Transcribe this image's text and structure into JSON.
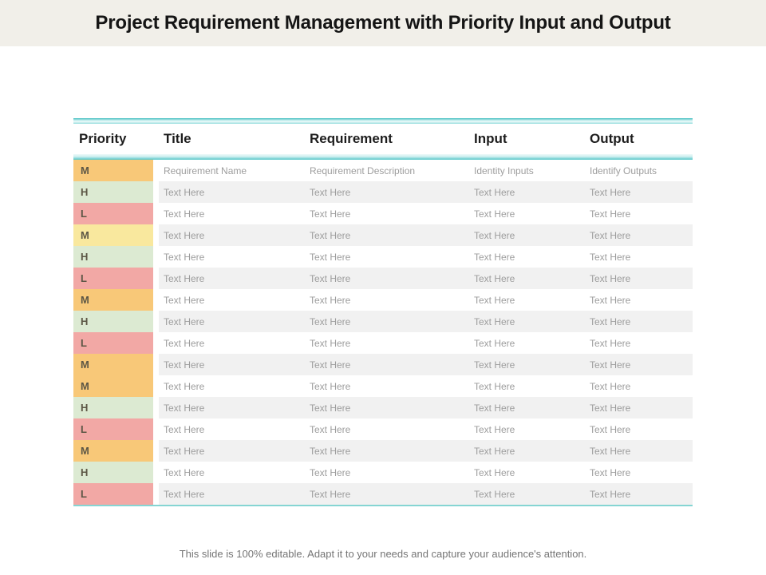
{
  "slide": {
    "title": "Project Requirement Management with Priority Input and Output",
    "footer": "This slide is 100% editable. Adapt it to your needs and capture your audience's attention."
  },
  "colors": {
    "title_bar_bg": "#f1efe9",
    "teal_accent": "#52c5c8",
    "row_alt_bg": "#f1f1f1",
    "priority_orange": "#f8c878",
    "priority_yellow": "#f9e89e",
    "priority_green": "#dcead2",
    "priority_pink": "#f2a8a5"
  },
  "table": {
    "headers": [
      "Priority",
      "Title",
      "Requirement",
      "Input",
      "Output"
    ],
    "rows": [
      {
        "priority": "M",
        "color_key": "priority_orange",
        "cells": [
          "Requirement Name",
          "Requirement Description",
          "Identity Inputs",
          "Identify Outputs"
        ]
      },
      {
        "priority": "H",
        "color_key": "priority_green",
        "cells": [
          "Text Here",
          "Text Here",
          "Text Here",
          "Text Here"
        ]
      },
      {
        "priority": "L",
        "color_key": "priority_pink",
        "cells": [
          "Text Here",
          "Text Here",
          "Text Here",
          "Text Here"
        ]
      },
      {
        "priority": "M",
        "color_key": "priority_yellow",
        "cells": [
          "Text Here",
          "Text Here",
          "Text Here",
          "Text Here"
        ]
      },
      {
        "priority": "H",
        "color_key": "priority_green",
        "cells": [
          "Text Here",
          "Text Here",
          "Text Here",
          "Text Here"
        ]
      },
      {
        "priority": "L",
        "color_key": "priority_pink",
        "cells": [
          "Text Here",
          "Text Here",
          "Text Here",
          "Text Here"
        ]
      },
      {
        "priority": "M",
        "color_key": "priority_orange",
        "cells": [
          "Text Here",
          "Text Here",
          "Text Here",
          "Text Here"
        ]
      },
      {
        "priority": "H",
        "color_key": "priority_green",
        "cells": [
          "Text Here",
          "Text Here",
          "Text Here",
          "Text Here"
        ]
      },
      {
        "priority": "L",
        "color_key": "priority_pink",
        "cells": [
          "Text Here",
          "Text Here",
          "Text Here",
          "Text Here"
        ]
      },
      {
        "priority": "M",
        "color_key": "priority_orange",
        "cells": [
          "Text Here",
          "Text Here",
          "Text Here",
          "Text Here"
        ]
      },
      {
        "priority": "M",
        "color_key": "priority_orange",
        "cells": [
          "Text Here",
          "Text Here",
          "Text Here",
          "Text Here"
        ]
      },
      {
        "priority": "H",
        "color_key": "priority_green",
        "cells": [
          "Text Here",
          "Text Here",
          "Text Here",
          "Text Here"
        ]
      },
      {
        "priority": "L",
        "color_key": "priority_pink",
        "cells": [
          "Text Here",
          "Text Here",
          "Text Here",
          "Text Here"
        ]
      },
      {
        "priority": "M",
        "color_key": "priority_orange",
        "cells": [
          "Text Here",
          "Text Here",
          "Text Here",
          "Text Here"
        ]
      },
      {
        "priority": "H",
        "color_key": "priority_green",
        "cells": [
          "Text Here",
          "Text Here",
          "Text Here",
          "Text Here"
        ]
      },
      {
        "priority": "L",
        "color_key": "priority_pink",
        "cells": [
          "Text Here",
          "Text Here",
          "Text Here",
          "Text Here"
        ]
      }
    ]
  }
}
